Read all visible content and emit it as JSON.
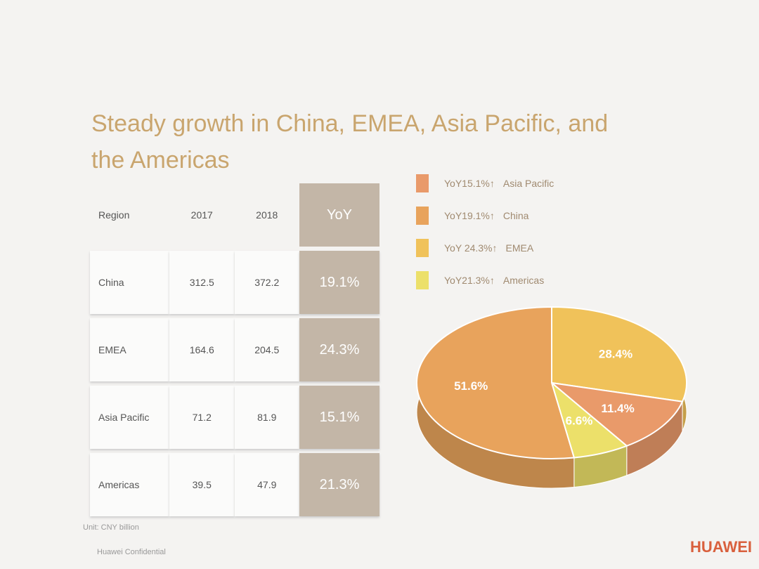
{
  "title": "Steady growth in China, EMEA, Asia Pacific, and the Americas",
  "table": {
    "header": [
      "Region",
      "2017",
      "2018",
      "YoY"
    ],
    "rows": [
      [
        "China",
        "312.5",
        "372.2",
        "19.1%"
      ],
      [
        "EMEA",
        "164.6",
        "204.5",
        "24.3%"
      ],
      [
        "Asia Pacific",
        "71.2",
        "81.9",
        "15.1%"
      ],
      [
        "Americas",
        "39.5",
        "47.9",
        "21.3%"
      ]
    ]
  },
  "unit_note": "Unit: CNY billion",
  "confidential": "Huawei Confidential",
  "logo": "HUAWEI",
  "chart_data": {
    "type": "pie",
    "categories": [
      "EMEA",
      "Asia Pacific",
      "Americas",
      "China"
    ],
    "values": [
      28.4,
      11.4,
      6.6,
      51.6
    ],
    "value_labels": [
      "28.4%",
      "11.4%",
      "6.6%",
      "51.6%"
    ],
    "colors": [
      "#f0c25a",
      "#e99a6a",
      "#ece06a",
      "#e8a35c"
    ],
    "legend": [
      {
        "note": "YoY15.1%↑",
        "category": "Asia Pacific",
        "color": "#e99a6a"
      },
      {
        "note": "YoY19.1%↑",
        "category": "China",
        "color": "#e8a35c"
      },
      {
        "note": "YoY 24.3%↑",
        "category": "EMEA",
        "color": "#f0c25a"
      },
      {
        "note": "YoY21.3%↑",
        "category": "Americas",
        "color": "#ece06a"
      }
    ]
  }
}
